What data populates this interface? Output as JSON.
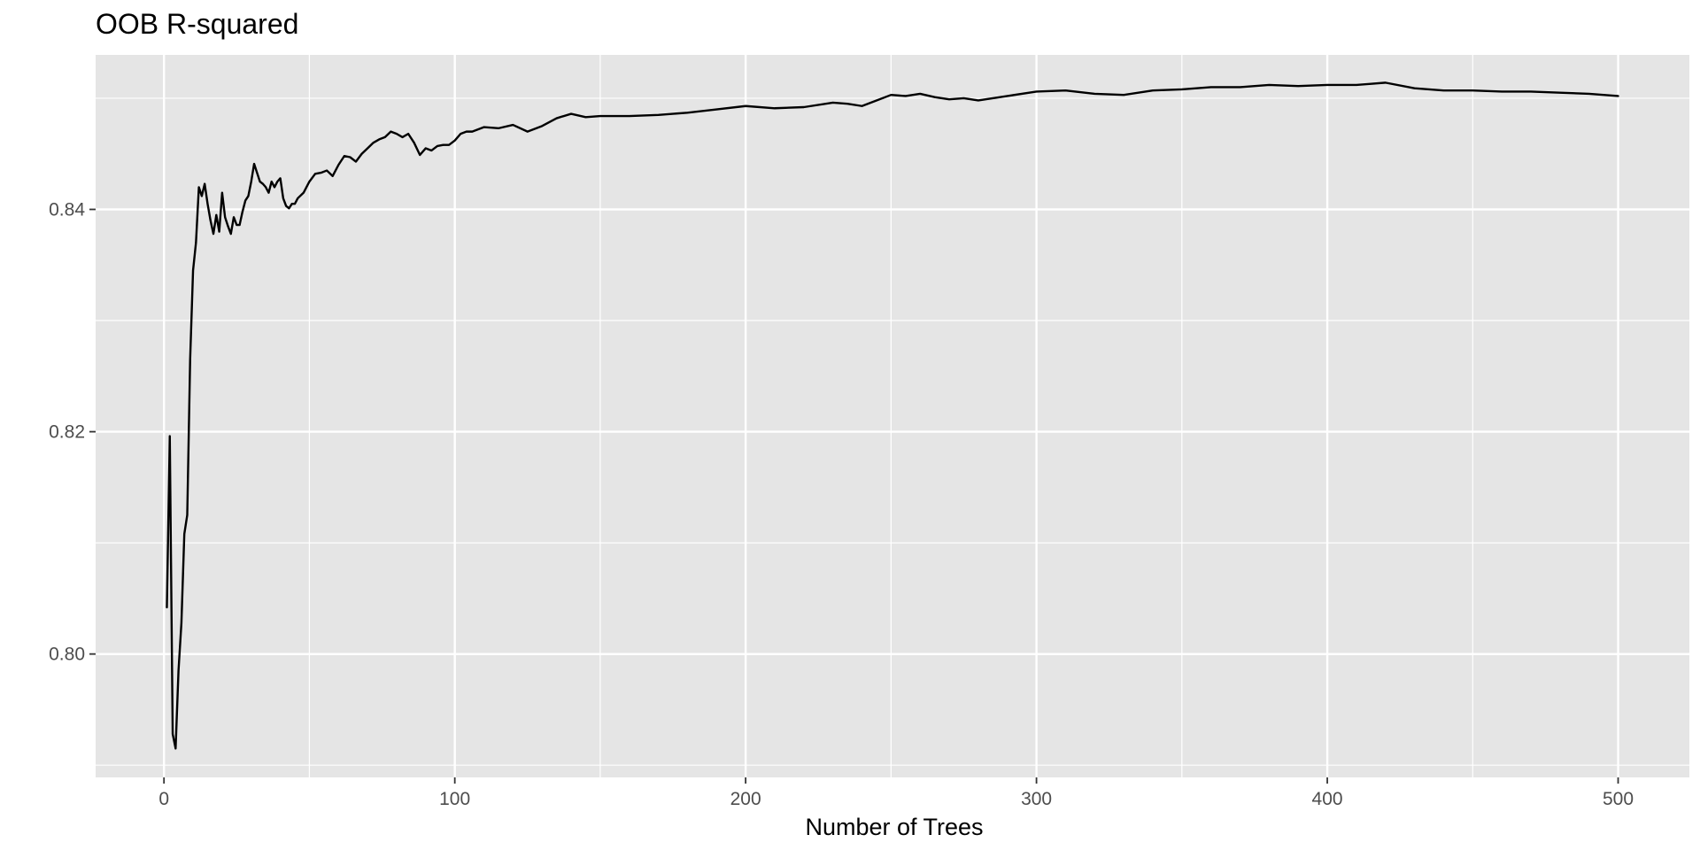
{
  "chart_data": {
    "type": "line",
    "title": "OOB R-squared",
    "xlabel": "Number of Trees",
    "ylabel": "",
    "xlim": [
      -23.5,
      524.5
    ],
    "ylim": [
      0.7889,
      0.8539
    ],
    "x_ticks": [
      0,
      100,
      200,
      300,
      400,
      500
    ],
    "x_tick_labels": [
      "0",
      "100",
      "200",
      "300",
      "400",
      "500"
    ],
    "x_minor_ticks": [
      50,
      150,
      250,
      350,
      450
    ],
    "y_ticks": [
      0.8,
      0.82,
      0.84
    ],
    "y_tick_labels": [
      "0.80",
      "0.82",
      "0.84"
    ],
    "y_minor_ticks": [
      0.79,
      0.81,
      0.83,
      0.85
    ],
    "grid": true,
    "legend": "none",
    "colors": {
      "panel": "#e5e5e5",
      "grid": "#ffffff",
      "line": "#000000",
      "tick_text": "#4d4d4d"
    },
    "series": [
      {
        "x": [
          1,
          2,
          3,
          4,
          5,
          6,
          7,
          8,
          9,
          10,
          11,
          12,
          13,
          14,
          15,
          16,
          17,
          18,
          19,
          20,
          21,
          22,
          23,
          24,
          25,
          26,
          27,
          28,
          29,
          30,
          31,
          32,
          33,
          34,
          35,
          36,
          37,
          38,
          39,
          40,
          41,
          42,
          43,
          44,
          45,
          46,
          48,
          50,
          52,
          54,
          56,
          58,
          60,
          62,
          64,
          66,
          68,
          70,
          72,
          74,
          76,
          78,
          80,
          82,
          84,
          86,
          88,
          90,
          92,
          94,
          96,
          98,
          100,
          102,
          104,
          106,
          110,
          115,
          120,
          125,
          130,
          135,
          140,
          145,
          150,
          160,
          170,
          180,
          190,
          200,
          210,
          220,
          230,
          235,
          240,
          245,
          250,
          255,
          260,
          265,
          270,
          275,
          280,
          290,
          300,
          310,
          320,
          330,
          340,
          350,
          360,
          370,
          380,
          390,
          400,
          410,
          415,
          420,
          430,
          440,
          450,
          460,
          470,
          480,
          490,
          500
        ],
        "values": [
          0.8042,
          0.8196,
          0.7928,
          0.7915,
          0.7985,
          0.8028,
          0.8108,
          0.8125,
          0.8265,
          0.8345,
          0.837,
          0.842,
          0.8412,
          0.8423,
          0.8405,
          0.839,
          0.8378,
          0.8395,
          0.838,
          0.8415,
          0.8393,
          0.8385,
          0.8378,
          0.8393,
          0.8386,
          0.8386,
          0.8398,
          0.8408,
          0.8412,
          0.8425,
          0.8441,
          0.8433,
          0.8425,
          0.8423,
          0.842,
          0.8415,
          0.8425,
          0.842,
          0.8425,
          0.8428,
          0.841,
          0.8403,
          0.8401,
          0.8405,
          0.8405,
          0.841,
          0.8415,
          0.8425,
          0.8432,
          0.8433,
          0.8435,
          0.843,
          0.844,
          0.8448,
          0.8447,
          0.8443,
          0.845,
          0.8455,
          0.846,
          0.8463,
          0.8465,
          0.847,
          0.8468,
          0.8465,
          0.8468,
          0.846,
          0.8449,
          0.8455,
          0.8453,
          0.8457,
          0.8458,
          0.8458,
          0.8462,
          0.8468,
          0.847,
          0.847,
          0.8474,
          0.8473,
          0.8476,
          0.847,
          0.8475,
          0.8482,
          0.8486,
          0.8483,
          0.8484,
          0.8484,
          0.8485,
          0.8487,
          0.849,
          0.8493,
          0.8491,
          0.8492,
          0.8496,
          0.8495,
          0.8493,
          0.8498,
          0.8503,
          0.8502,
          0.8504,
          0.8501,
          0.8499,
          0.85,
          0.8498,
          0.8502,
          0.8506,
          0.8507,
          0.8504,
          0.8503,
          0.8507,
          0.8508,
          0.851,
          0.851,
          0.8512,
          0.8511,
          0.8512,
          0.8512,
          0.8513,
          0.8514,
          0.8509,
          0.8507,
          0.8507,
          0.8506,
          0.8506,
          0.8505,
          0.8504,
          0.8502
        ]
      }
    ]
  }
}
